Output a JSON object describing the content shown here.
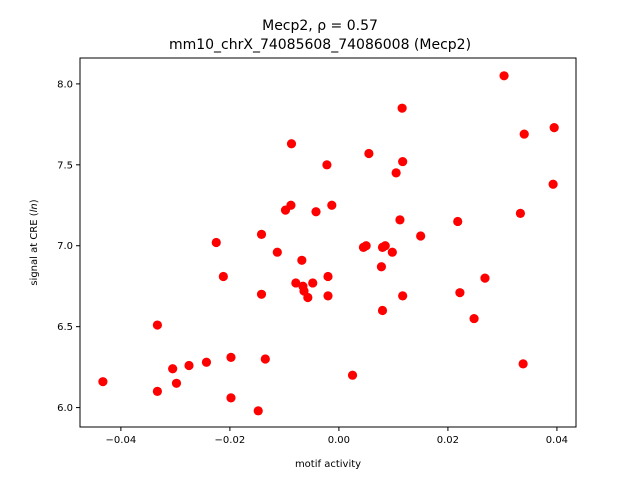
{
  "chart_data": {
    "type": "scatter",
    "title": "Mecp2, ρ = 0.57",
    "subtitle": "mm10_chrX_74085608_74086008 (Mecp2)",
    "xlabel": "motif activity",
    "ylabel": "signal at CRE (ln)",
    "xlim": [
      -0.0475,
      0.0435
    ],
    "ylim": [
      5.88,
      8.16
    ],
    "xticks": [
      -0.04,
      -0.02,
      0.0,
      0.02,
      0.04
    ],
    "xtick_labels": [
      "−0.04",
      "−0.02",
      "0.00",
      "0.02",
      "0.04"
    ],
    "yticks": [
      6.0,
      6.5,
      7.0,
      7.5,
      8.0
    ],
    "ytick_labels": [
      "6.0",
      "6.5",
      "7.0",
      "7.5",
      "8.0"
    ],
    "grid": false,
    "marker_color": "#ff0000",
    "points": [
      {
        "x": -0.0433,
        "y": 6.16
      },
      {
        "x": -0.0333,
        "y": 6.51
      },
      {
        "x": -0.0333,
        "y": 6.1
      },
      {
        "x": -0.0305,
        "y": 6.24
      },
      {
        "x": -0.0298,
        "y": 6.15
      },
      {
        "x": -0.0275,
        "y": 6.26
      },
      {
        "x": -0.0243,
        "y": 6.28
      },
      {
        "x": -0.0225,
        "y": 7.02
      },
      {
        "x": -0.0212,
        "y": 6.81
      },
      {
        "x": -0.0198,
        "y": 6.31
      },
      {
        "x": -0.0198,
        "y": 6.06
      },
      {
        "x": -0.0148,
        "y": 5.98
      },
      {
        "x": -0.0142,
        "y": 7.07
      },
      {
        "x": -0.0142,
        "y": 6.7
      },
      {
        "x": -0.0135,
        "y": 6.3
      },
      {
        "x": -0.0113,
        "y": 6.96
      },
      {
        "x": -0.0098,
        "y": 7.22
      },
      {
        "x": -0.0088,
        "y": 7.25
      },
      {
        "x": -0.0087,
        "y": 7.63
      },
      {
        "x": -0.0079,
        "y": 6.77
      },
      {
        "x": -0.0068,
        "y": 6.91
      },
      {
        "x": -0.0066,
        "y": 6.75
      },
      {
        "x": -0.0064,
        "y": 6.72
      },
      {
        "x": -0.0057,
        "y": 6.68
      },
      {
        "x": -0.0048,
        "y": 6.77
      },
      {
        "x": -0.0042,
        "y": 7.21
      },
      {
        "x": -0.0022,
        "y": 7.5
      },
      {
        "x": -0.002,
        "y": 6.81
      },
      {
        "x": -0.002,
        "y": 6.69
      },
      {
        "x": -0.0013,
        "y": 7.25
      },
      {
        "x": 0.0025,
        "y": 6.2
      },
      {
        "x": 0.0045,
        "y": 6.99
      },
      {
        "x": 0.005,
        "y": 7.0
      },
      {
        "x": 0.0055,
        "y": 7.57
      },
      {
        "x": 0.0078,
        "y": 6.87
      },
      {
        "x": 0.008,
        "y": 6.99
      },
      {
        "x": 0.008,
        "y": 6.6
      },
      {
        "x": 0.0085,
        "y": 7.0
      },
      {
        "x": 0.0098,
        "y": 6.96
      },
      {
        "x": 0.0105,
        "y": 7.45
      },
      {
        "x": 0.0112,
        "y": 7.16
      },
      {
        "x": 0.0116,
        "y": 7.85
      },
      {
        "x": 0.0117,
        "y": 7.52
      },
      {
        "x": 0.0117,
        "y": 6.69
      },
      {
        "x": 0.015,
        "y": 7.06
      },
      {
        "x": 0.0218,
        "y": 7.15
      },
      {
        "x": 0.0222,
        "y": 6.71
      },
      {
        "x": 0.0248,
        "y": 6.55
      },
      {
        "x": 0.0268,
        "y": 6.8
      },
      {
        "x": 0.0303,
        "y": 8.05
      },
      {
        "x": 0.0333,
        "y": 7.2
      },
      {
        "x": 0.0338,
        "y": 6.27
      },
      {
        "x": 0.034,
        "y": 7.69
      },
      {
        "x": 0.0393,
        "y": 7.38
      },
      {
        "x": 0.0395,
        "y": 7.73
      }
    ]
  }
}
